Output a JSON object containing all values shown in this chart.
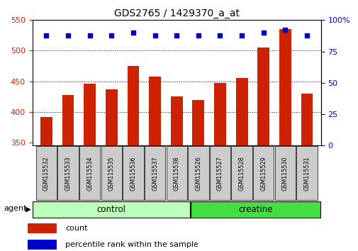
{
  "title": "GDS2765 / 1429370_a_at",
  "categories": [
    "GSM115532",
    "GSM115533",
    "GSM115534",
    "GSM115535",
    "GSM115536",
    "GSM115537",
    "GSM115538",
    "GSM115526",
    "GSM115527",
    "GSM115528",
    "GSM115529",
    "GSM115530",
    "GSM115531"
  ],
  "bar_values": [
    392,
    428,
    446,
    437,
    475,
    458,
    425,
    420,
    447,
    455,
    505,
    535,
    430
  ],
  "percentile_values": [
    88,
    88,
    88,
    88,
    90,
    88,
    88,
    88,
    88,
    88,
    90,
    92,
    88
  ],
  "bar_color": "#cc2200",
  "percentile_color": "#0000cc",
  "ylim_left": [
    345,
    550
  ],
  "ylim_right": [
    0,
    100
  ],
  "yticks_left": [
    350,
    400,
    450,
    500,
    550
  ],
  "yticks_right": [
    0,
    25,
    50,
    75,
    100
  ],
  "n_control": 7,
  "n_creatine": 6,
  "control_color": "#bbffbb",
  "creatine_color": "#44dd44",
  "label_bg_color": "#cccccc",
  "legend_count": "count",
  "legend_percentile": "percentile rank within the sample",
  "bar_bottom": 345,
  "bar_width": 0.55
}
